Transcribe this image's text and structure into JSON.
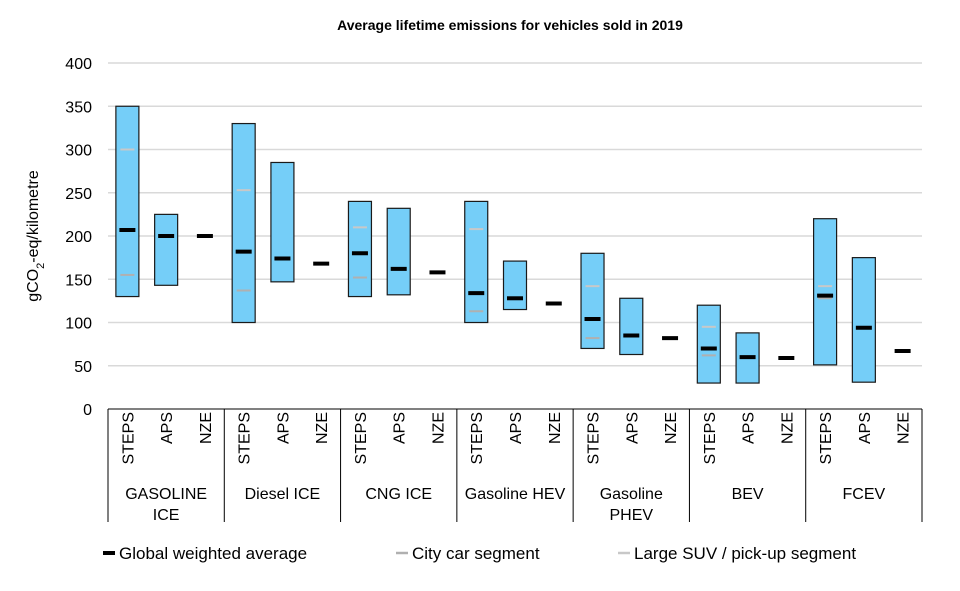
{
  "chart_data": {
    "type": "bar",
    "subtype": "floating-range",
    "title": "Average lifetime emissions for vehicles sold in 2019",
    "ylabel": "gCO2-eq/kilometre",
    "ylim": [
      0,
      400
    ],
    "yticks": [
      0,
      50,
      100,
      150,
      200,
      250,
      300,
      350,
      400
    ],
    "grid": true,
    "legend_position": "bottom",
    "colors": {
      "range_fill": "#75CEF8",
      "range_stroke": "#1a1a1a",
      "average": "#000000",
      "city": "#b0b0b0",
      "suv": "#c8c8c8",
      "grid": "#d9d9d9"
    },
    "legend": [
      {
        "key": "average",
        "label": "Global weighted average"
      },
      {
        "key": "city",
        "label": "City car segment"
      },
      {
        "key": "suv",
        "label": "Large SUV / pick-up segment"
      }
    ],
    "groups": [
      {
        "label": [
          "GASOLINE",
          "ICE"
        ],
        "scenarios": [
          {
            "name": "STEPS",
            "min": 130,
            "max": 350,
            "average": 207,
            "city": 155,
            "suv": 300
          },
          {
            "name": "APS",
            "min": 143,
            "max": 225,
            "average": 200
          },
          {
            "name": "NZE",
            "average": 200
          }
        ]
      },
      {
        "label": [
          "Diesel ICE"
        ],
        "scenarios": [
          {
            "name": "STEPS",
            "min": 100,
            "max": 330,
            "average": 182,
            "city": 137,
            "suv": 253
          },
          {
            "name": "APS",
            "min": 147,
            "max": 285,
            "average": 174
          },
          {
            "name": "NZE",
            "average": 168
          }
        ]
      },
      {
        "label": [
          "CNG ICE"
        ],
        "scenarios": [
          {
            "name": "STEPS",
            "min": 130,
            "max": 240,
            "average": 180,
            "city": 152,
            "suv": 210
          },
          {
            "name": "APS",
            "min": 132,
            "max": 232,
            "average": 162
          },
          {
            "name": "NZE",
            "average": 158
          }
        ]
      },
      {
        "label": [
          "Gasoline HEV"
        ],
        "scenarios": [
          {
            "name": "STEPS",
            "min": 100,
            "max": 240,
            "average": 134,
            "city": 113,
            "suv": 208
          },
          {
            "name": "APS",
            "min": 115,
            "max": 171,
            "average": 128
          },
          {
            "name": "NZE",
            "average": 122
          }
        ]
      },
      {
        "label": [
          "Gasoline",
          "PHEV"
        ],
        "scenarios": [
          {
            "name": "STEPS",
            "min": 70,
            "max": 180,
            "average": 104,
            "city": 82,
            "suv": 142
          },
          {
            "name": "APS",
            "min": 63,
            "max": 128,
            "average": 85
          },
          {
            "name": "NZE",
            "average": 82
          }
        ]
      },
      {
        "label": [
          "BEV"
        ],
        "scenarios": [
          {
            "name": "STEPS",
            "min": 30,
            "max": 120,
            "average": 70,
            "city": 62,
            "suv": 95
          },
          {
            "name": "APS",
            "min": 30,
            "max": 88,
            "average": 60
          },
          {
            "name": "NZE",
            "average": 59
          }
        ]
      },
      {
        "label": [
          "FCEV"
        ],
        "scenarios": [
          {
            "name": "STEPS",
            "min": 51,
            "max": 220,
            "average": 131,
            "city": 128,
            "suv": 142
          },
          {
            "name": "APS",
            "min": 31,
            "max": 175,
            "average": 94
          },
          {
            "name": "NZE",
            "average": 67
          }
        ]
      }
    ]
  }
}
